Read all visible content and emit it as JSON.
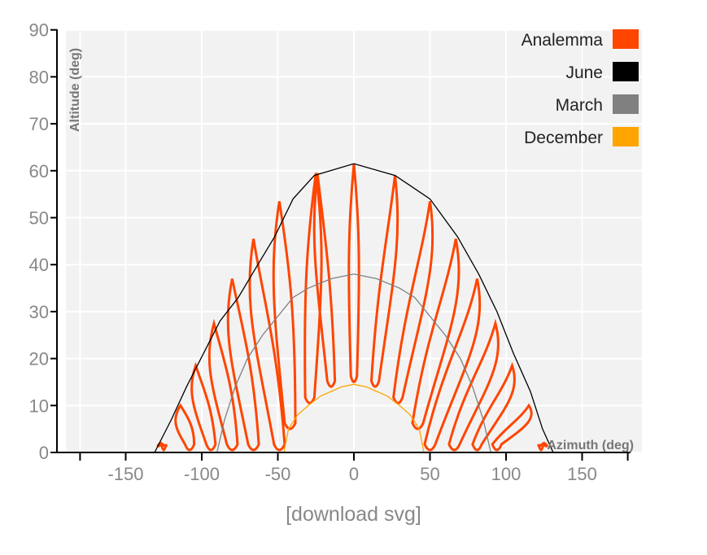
{
  "chart_data": {
    "type": "line",
    "title": "",
    "xlabel": "Azimuth (deg)",
    "ylabel": "Altitude (deg)",
    "xlim": [
      -180,
      180
    ],
    "ylim": [
      0,
      90
    ],
    "x_ticks": [
      -150,
      -100,
      -50,
      0,
      50,
      100,
      150
    ],
    "y_ticks": [
      0,
      10,
      20,
      30,
      40,
      50,
      60,
      70,
      80,
      90
    ],
    "grid": true,
    "legend_position": "top-right",
    "colors": {
      "Analemma": "#ff4500",
      "June": "#000000",
      "March": "#808080",
      "December": "#ffa500"
    },
    "series": [
      {
        "name": "June",
        "x": [
          -131,
          -120,
          -110,
          -99,
          -88,
          -76,
          -65,
          -52,
          -40,
          -26,
          0,
          27,
          50,
          68,
          82,
          94,
          105,
          116,
          124,
          131
        ],
        "y": [
          0,
          7,
          14,
          21,
          28,
          33,
          39,
          46,
          54,
          59,
          61.5,
          59,
          54,
          46,
          38,
          30,
          21,
          13,
          5,
          0
        ]
      },
      {
        "name": "March",
        "x": [
          -90,
          -85,
          -78,
          -70,
          -60,
          -50,
          -40,
          -30,
          -15,
          0,
          15,
          30,
          40,
          50,
          60,
          70,
          78,
          85,
          90
        ],
        "y": [
          0,
          7,
          14,
          20,
          25,
          29,
          33,
          35,
          37,
          38,
          37,
          35,
          33,
          29,
          25,
          20,
          14,
          7,
          0
        ]
      },
      {
        "name": "December",
        "x": [
          -46,
          -43,
          -37,
          -30,
          -22,
          -15,
          -8,
          0,
          8,
          15,
          22,
          30,
          37,
          43,
          46
        ],
        "y": [
          0,
          5,
          8,
          10,
          12,
          13,
          14,
          14.5,
          14,
          13,
          12,
          10,
          8,
          5,
          0
        ]
      },
      {
        "name": "Analemma",
        "loops": [
          {
            "center_azimuth": -127,
            "top_azimuth": -127,
            "top_altitude": 2,
            "bottom_azimuth": -125,
            "bottom_altitude": 0,
            "width": 3
          },
          {
            "center_azimuth": -113,
            "top_azimuth": -114,
            "top_altitude": 10,
            "bottom_azimuth": -108,
            "bottom_altitude": 0,
            "width": 6
          },
          {
            "center_azimuth": -100,
            "top_azimuth": -104,
            "top_altitude": 18.5,
            "bottom_azimuth": -94,
            "bottom_altitude": 0,
            "width": 6
          },
          {
            "center_azimuth": -87,
            "top_azimuth": -92,
            "top_altitude": 27.5,
            "bottom_azimuth": -80,
            "bottom_altitude": 0,
            "width": 7
          },
          {
            "center_azimuth": -74,
            "top_azimuth": -80,
            "top_altitude": 37,
            "bottom_azimuth": -66,
            "bottom_altitude": 0,
            "width": 7
          },
          {
            "center_azimuth": -58,
            "top_azimuth": -66,
            "top_altitude": 45.5,
            "bottom_azimuth": -49,
            "bottom_altitude": 0,
            "width": 7
          },
          {
            "center_azimuth": -42,
            "top_azimuth": -49,
            "top_altitude": 53.5,
            "bottom_azimuth": -42,
            "bottom_altitude": 4.5,
            "width": 7
          },
          {
            "center_azimuth": -23,
            "top_azimuth": -25,
            "top_altitude": 59.5,
            "bottom_azimuth": -29,
            "bottom_altitude": 10,
            "width": 6
          },
          {
            "center_azimuth": -15,
            "top_azimuth": -24,
            "top_altitude": 59.5,
            "bottom_azimuth": -15,
            "bottom_altitude": 13.5,
            "width": 5
          },
          {
            "center_azimuth": 0,
            "top_azimuth": 0,
            "top_altitude": 61.5,
            "bottom_azimuth": 0,
            "bottom_altitude": 14.5,
            "width": 4
          },
          {
            "center_azimuth": 16,
            "top_azimuth": 27,
            "top_altitude": 59,
            "bottom_azimuth": 14,
            "bottom_altitude": 13.5,
            "width": 5
          },
          {
            "center_azimuth": 32,
            "top_azimuth": 50,
            "top_altitude": 53.5,
            "bottom_azimuth": 29,
            "bottom_altitude": 10,
            "width": 6
          },
          {
            "center_azimuth": 50,
            "top_azimuth": 67,
            "top_altitude": 45.5,
            "bottom_azimuth": 42,
            "bottom_altitude": 4.5,
            "width": 7
          },
          {
            "center_azimuth": 62,
            "top_azimuth": 81,
            "top_altitude": 37,
            "bottom_azimuth": 50,
            "bottom_altitude": 0,
            "width": 7
          },
          {
            "center_azimuth": 76,
            "top_azimuth": 93,
            "top_altitude": 27.5,
            "bottom_azimuth": 66,
            "bottom_altitude": 0,
            "width": 7
          },
          {
            "center_azimuth": 90,
            "top_azimuth": 104,
            "top_altitude": 18.5,
            "bottom_azimuth": 81,
            "bottom_altitude": 0,
            "width": 6
          },
          {
            "center_azimuth": 104,
            "top_azimuth": 115,
            "top_altitude": 10,
            "bottom_azimuth": 94,
            "bottom_altitude": 0,
            "width": 6
          },
          {
            "center_azimuth": 125,
            "top_azimuth": 125,
            "top_altitude": 2,
            "bottom_azimuth": 123,
            "bottom_altitude": 0,
            "width": 3
          }
        ]
      }
    ]
  },
  "legend": [
    {
      "label": "Analemma",
      "color": "#ff4500"
    },
    {
      "label": "June",
      "color": "#000000"
    },
    {
      "label": "March",
      "color": "#808080"
    },
    {
      "label": "December",
      "color": "#ffa500"
    }
  ],
  "download_link": "[download svg]"
}
